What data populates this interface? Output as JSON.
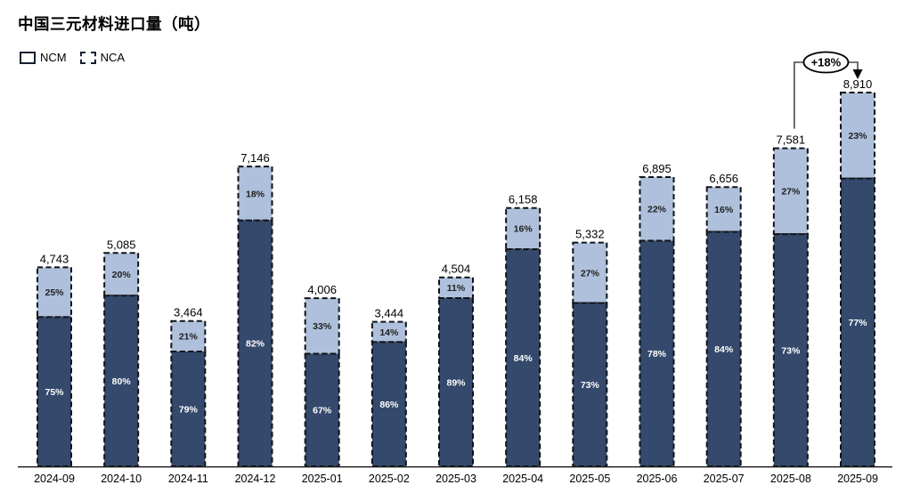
{
  "title": "中国三元材料进口量（吨）",
  "legend": {
    "items": [
      {
        "label": "NCM",
        "color": "#34496B"
      },
      {
        "label": "NCA",
        "color": "#AEC0DB"
      }
    ]
  },
  "colors": {
    "ncm_fill": "#34496B",
    "nca_fill": "#AEC0DB",
    "bar_stroke": "#111319",
    "ncm_label": "#FFFFFF",
    "nca_label": "#1F1F1F",
    "axis": "#1A1A1A"
  },
  "chart_data": {
    "type": "bar",
    "stacked": true,
    "title": "中国三元材料进口量（吨）",
    "xlabel": "",
    "ylabel": "",
    "grid": false,
    "legend_position": "top-left",
    "ylim": [
      0,
      8910
    ],
    "categories": [
      "2024-09",
      "2024-10",
      "2024-11",
      "2024-12",
      "2025-01",
      "2025-02",
      "2025-03",
      "2025-04",
      "2025-05",
      "2025-06",
      "2025-07",
      "2025-08",
      "2025-09"
    ],
    "totals": [
      4743,
      5085,
      3464,
      7146,
      4006,
      3444,
      4504,
      6158,
      5332,
      6895,
      6656,
      7581,
      8910
    ],
    "total_labels": [
      "4,743",
      "5,085",
      "3,464",
      "7,146",
      "4,006",
      "3,444",
      "4,504",
      "6,158",
      "5,332",
      "6,895",
      "6,656",
      "7,581",
      "8,910"
    ],
    "series": [
      {
        "name": "NCM",
        "share_pct": [
          75,
          80,
          79,
          82,
          67,
          86,
          89,
          84,
          73,
          78,
          84,
          73,
          77
        ],
        "color": "#34496B",
        "label_color": "#FFFFFF"
      },
      {
        "name": "NCA",
        "share_pct": [
          25,
          20,
          21,
          18,
          33,
          14,
          11,
          16,
          27,
          22,
          16,
          27,
          23
        ],
        "color": "#AEC0DB",
        "label_color": "#1F1F1F"
      }
    ],
    "annotation": {
      "text": "+18%",
      "from": "2025-08",
      "to": "2025-09"
    }
  }
}
